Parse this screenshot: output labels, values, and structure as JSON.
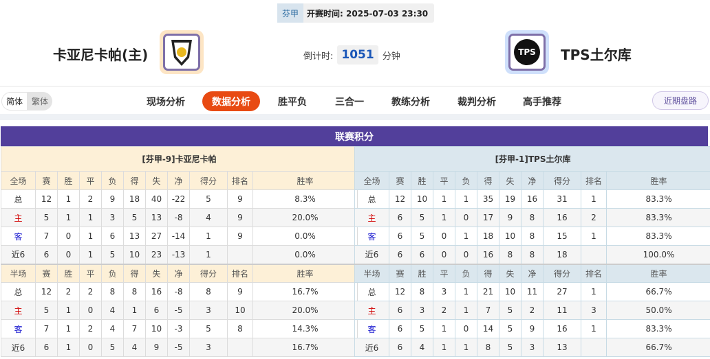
{
  "header": {
    "league": "芬甲",
    "kickoff_label": "开赛时间:",
    "kickoff": "2025-07-03 23:30",
    "home_team": "卡亚尼卡帕(主)",
    "away_team": "TPS土尔库",
    "countdown_label": "倒计时:",
    "countdown_value": "1051",
    "countdown_unit": "分钟"
  },
  "nav": {
    "lang": [
      "简体",
      "繁体"
    ],
    "tabs": [
      "现场分析",
      "数据分析",
      "胜平负",
      "三合一",
      "教练分析",
      "裁判分析",
      "高手推荐"
    ],
    "active_tab": "数据分析",
    "recent": "近期盘路"
  },
  "section_title": "联赛积分",
  "columns_full": [
    "全场",
    "赛",
    "胜",
    "平",
    "负",
    "得",
    "失",
    "净",
    "得分",
    "排名",
    "胜率"
  ],
  "columns_half": [
    "半场",
    "赛",
    "胜",
    "平",
    "负",
    "得",
    "失",
    "净",
    "得分",
    "排名",
    "胜率"
  ],
  "home_table": {
    "caption": "[芬甲-9]卡亚尼卡帕",
    "full": [
      [
        "总",
        "12",
        "1",
        "2",
        "9",
        "18",
        "40",
        "-22",
        "5",
        "9",
        "8.3%"
      ],
      [
        "主",
        "5",
        "1",
        "1",
        "3",
        "5",
        "13",
        "-8",
        "4",
        "9",
        "20.0%"
      ],
      [
        "客",
        "7",
        "0",
        "1",
        "6",
        "13",
        "27",
        "-14",
        "1",
        "9",
        "0.0%"
      ],
      [
        "近6",
        "6",
        "0",
        "1",
        "5",
        "10",
        "23",
        "-13",
        "1",
        "",
        "0.0%"
      ]
    ],
    "half": [
      [
        "总",
        "12",
        "2",
        "2",
        "8",
        "8",
        "16",
        "-8",
        "8",
        "9",
        "16.7%"
      ],
      [
        "主",
        "5",
        "1",
        "0",
        "4",
        "1",
        "6",
        "-5",
        "3",
        "10",
        "20.0%"
      ],
      [
        "客",
        "7",
        "1",
        "2",
        "4",
        "7",
        "10",
        "-3",
        "5",
        "8",
        "14.3%"
      ],
      [
        "近6",
        "6",
        "1",
        "0",
        "5",
        "4",
        "9",
        "-5",
        "3",
        "",
        "16.7%"
      ]
    ]
  },
  "away_table": {
    "caption": "[芬甲-1]TPS土尔库",
    "full": [
      [
        "总",
        "12",
        "10",
        "1",
        "1",
        "35",
        "19",
        "16",
        "31",
        "1",
        "83.3%"
      ],
      [
        "主",
        "6",
        "5",
        "1",
        "0",
        "17",
        "9",
        "8",
        "16",
        "2",
        "83.3%"
      ],
      [
        "客",
        "6",
        "5",
        "0",
        "1",
        "18",
        "10",
        "8",
        "15",
        "1",
        "83.3%"
      ],
      [
        "近6",
        "6",
        "6",
        "0",
        "0",
        "16",
        "8",
        "8",
        "18",
        "",
        "100.0%"
      ]
    ],
    "half": [
      [
        "总",
        "12",
        "8",
        "3",
        "1",
        "21",
        "10",
        "11",
        "27",
        "1",
        "66.7%"
      ],
      [
        "主",
        "6",
        "3",
        "2",
        "1",
        "7",
        "5",
        "2",
        "11",
        "3",
        "50.0%"
      ],
      [
        "客",
        "6",
        "5",
        "1",
        "0",
        "14",
        "5",
        "9",
        "16",
        "1",
        "83.3%"
      ],
      [
        "近6",
        "6",
        "4",
        "1",
        "1",
        "8",
        "5",
        "3",
        "13",
        "",
        "66.7%"
      ]
    ]
  },
  "colors": {
    "accent": "#e84a12",
    "title_bar": "#523f9b",
    "home_label": "#d10000",
    "away_label": "#1a1ad0"
  }
}
